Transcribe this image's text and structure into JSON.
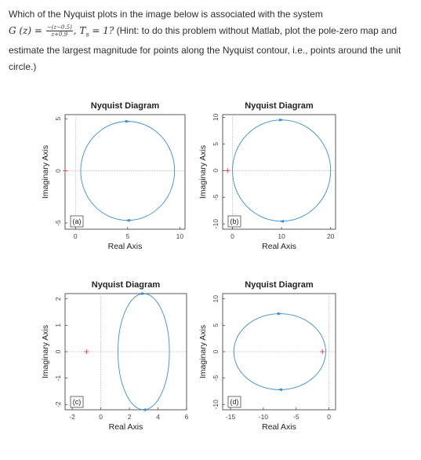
{
  "question": {
    "line1": "Which of the Nyquist plots in the image below is associated with the system",
    "g_lhs": "G (z) = ",
    "frac_num": "−(z−0.5)",
    "frac_den": "z+0.9",
    "ts_part": ", T",
    "ts_sub": "s",
    "ts_eq": " = 1?",
    "line2_rest": " (Hint: to do this problem without Matlab, plot the pole-zero map and",
    "line3": "estimate the largest magnitude for points along the Nyquist contour, i.e., points around the unit",
    "line4": "circle.)"
  },
  "colors": {
    "curve": "#3a8fd0",
    "axis": "#333333",
    "critical": "#e53935",
    "dotted": "#b8b8b8"
  },
  "chart_data": [
    {
      "type": "line",
      "panel": "(a)",
      "title": "Nyquist Diagram",
      "xlabel": "Real Axis",
      "ylabel": "Imaginary Axis",
      "xlim": [
        -1,
        10.5
      ],
      "ylim": [
        -5.6,
        5.4
      ],
      "xticks": [
        0,
        5,
        10
      ],
      "yticks": [
        -5,
        0,
        5
      ],
      "xtick_labels": [
        "0",
        "5",
        "10"
      ],
      "ytick_labels": [
        "-5",
        "0",
        "5"
      ],
      "circle": {
        "center": [
          5,
          0
        ],
        "rx": 4.5,
        "ry": 4.75
      }
    },
    {
      "type": "line",
      "panel": "(b)",
      "title": "Nyquist Diagram",
      "xlabel": "Real Axis",
      "ylabel": "Imaginary Axis",
      "xlim": [
        -2,
        21
      ],
      "ylim": [
        -11,
        10.5
      ],
      "xticks": [
        0,
        10,
        20
      ],
      "yticks": [
        -10,
        -5,
        0,
        5,
        10
      ],
      "xtick_labels": [
        "0",
        "10",
        "20"
      ],
      "ytick_labels": [
        "-10",
        "-5",
        "0",
        "5",
        "10"
      ],
      "circle": {
        "center": [
          10,
          0
        ],
        "rx": 10,
        "ry": 9.5
      }
    },
    {
      "type": "line",
      "panel": "(c)",
      "title": "Nyquist Diagram",
      "xlabel": "Real Axis",
      "ylabel": "Imaginary Axis",
      "xlim": [
        -2.5,
        6
      ],
      "ylim": [
        -2.2,
        2.2
      ],
      "xticks": [
        -2,
        0,
        2,
        4,
        6
      ],
      "yticks": [
        -2,
        -1,
        0,
        1,
        2
      ],
      "xtick_labels": [
        "-2",
        "0",
        "2",
        "4",
        "6"
      ],
      "ytick_labels": [
        "-2",
        "-1",
        "0",
        "1",
        "2"
      ],
      "circle": {
        "center": [
          3,
          0
        ],
        "rx": 1.8,
        "ry": 2.2
      }
    },
    {
      "type": "line",
      "panel": "(d)",
      "title": "Nyquist Diagram",
      "xlabel": "Real Axis",
      "ylabel": "Imaginary Axis",
      "xlim": [
        -16.2,
        1
      ],
      "ylim": [
        -11,
        11
      ],
      "xticks": [
        -15,
        -10,
        -5,
        0
      ],
      "yticks": [
        -10,
        -5,
        0,
        5,
        10
      ],
      "xtick_labels": [
        "-15",
        "-10",
        "-5",
        "0"
      ],
      "ytick_labels": [
        "-10",
        "-5",
        "0",
        "5",
        "10"
      ],
      "circle": {
        "center": [
          -7.5,
          0
        ],
        "rx": 7,
        "ry": 7.2
      }
    }
  ]
}
